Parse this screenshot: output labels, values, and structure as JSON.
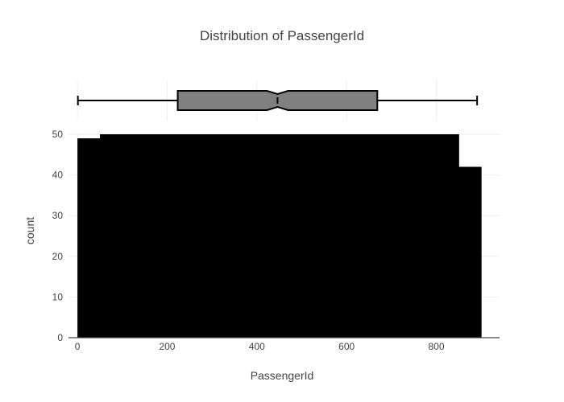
{
  "chart_data": {
    "type": "bar",
    "title": "Distribution of PassengerId",
    "xlabel": "PassengerId",
    "ylabel": "count",
    "xlim": [
      -20,
      941
    ],
    "ylim": [
      0,
      50
    ],
    "x_ticks": [
      0,
      200,
      400,
      600,
      800
    ],
    "y_ticks": [
      0,
      10,
      20,
      30,
      40,
      50
    ],
    "grid": true,
    "bar_color": "#000000",
    "bins": [
      {
        "start": 0,
        "end": 50,
        "count": 49
      },
      {
        "start": 50,
        "end": 100,
        "count": 50
      },
      {
        "start": 100,
        "end": 150,
        "count": 50
      },
      {
        "start": 150,
        "end": 200,
        "count": 50
      },
      {
        "start": 200,
        "end": 250,
        "count": 50
      },
      {
        "start": 250,
        "end": 300,
        "count": 50
      },
      {
        "start": 300,
        "end": 350,
        "count": 50
      },
      {
        "start": 350,
        "end": 400,
        "count": 50
      },
      {
        "start": 400,
        "end": 450,
        "count": 50
      },
      {
        "start": 450,
        "end": 500,
        "count": 50
      },
      {
        "start": 500,
        "end": 550,
        "count": 50
      },
      {
        "start": 550,
        "end": 600,
        "count": 50
      },
      {
        "start": 600,
        "end": 650,
        "count": 50
      },
      {
        "start": 650,
        "end": 700,
        "count": 50
      },
      {
        "start": 700,
        "end": 750,
        "count": 50
      },
      {
        "start": 750,
        "end": 800,
        "count": 50
      },
      {
        "start": 800,
        "end": 850,
        "count": 50
      },
      {
        "start": 850,
        "end": 900,
        "count": 42
      }
    ],
    "box": {
      "min": 1,
      "q1": 223.5,
      "median": 446,
      "q3": 668.5,
      "max": 891,
      "notch_low": 422.5,
      "notch_high": 469.5,
      "fill": "#808080",
      "line_color": "#000000"
    }
  }
}
